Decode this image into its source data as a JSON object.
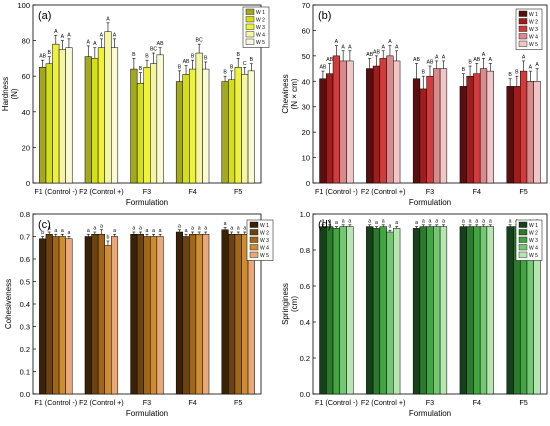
{
  "chart_data": [
    {
      "panel_label": "(a)",
      "type": "bar",
      "xlabel": "Formulation",
      "ylabel": "Hardness",
      "yunit": "(N)",
      "ylim": [
        0,
        100
      ],
      "yticks": [
        0,
        20,
        40,
        60,
        80,
        100
      ],
      "categories": [
        "F1 (Control -)",
        "F2 (Control +)",
        "F3",
        "F4",
        "F5"
      ],
      "series": [
        {
          "name": "W 1",
          "color": "#a3a81f",
          "values": [
            65,
            71,
            64,
            57,
            57
          ],
          "errors": [
            4,
            6,
            6,
            6,
            3
          ],
          "letters": [
            "AB",
            "A",
            "B",
            "B",
            "B"
          ]
        },
        {
          "name": "W 2",
          "color": "#d5de1c",
          "values": [
            67,
            70,
            56,
            61,
            58
          ],
          "errors": [
            4,
            6,
            6,
            5,
            5
          ],
          "letters": [
            "B",
            "A",
            "B",
            "AB",
            "B"
          ]
        },
        {
          "name": "W 3",
          "color": "#eef23a",
          "values": [
            78,
            76,
            65,
            64,
            65
          ],
          "errors": [
            5,
            5,
            4,
            5,
            5
          ],
          "letters": [
            "A",
            "A",
            "B",
            "B",
            "B"
          ]
        },
        {
          "name": "W 4",
          "color": "#f5f5a6",
          "values": [
            75,
            85,
            67,
            73,
            61
          ],
          "errors": [
            5,
            5,
            6,
            5,
            4
          ],
          "letters": [
            "A",
            "A",
            "BC",
            "BC",
            "C"
          ]
        },
        {
          "name": "W 5",
          "color": "#fafad5",
          "values": [
            76,
            76,
            72,
            64,
            63
          ],
          "errors": [
            5,
            5,
            4,
            4,
            4
          ],
          "letters": [
            "A",
            "A",
            "AB",
            "B",
            "B"
          ]
        }
      ]
    },
    {
      "panel_label": "(b)",
      "type": "bar",
      "xlabel": "Formulation",
      "ylabel": "Chewiness",
      "yunit": "(N × cm)",
      "ylim": [
        0,
        70
      ],
      "yticks": [
        0,
        10,
        20,
        30,
        40,
        50,
        60,
        70
      ],
      "categories": [
        "F1 (Control -)",
        "F2 (Control +)",
        "F3",
        "F4",
        "F5"
      ],
      "series": [
        {
          "name": "W 1",
          "color": "#5a0f0f",
          "values": [
            41,
            45,
            41,
            38,
            38
          ],
          "errors": [
            3,
            4,
            6,
            5,
            3
          ],
          "letters": [
            "AB",
            "AB",
            "AB",
            "B",
            "B"
          ]
        },
        {
          "name": "W 2",
          "color": "#a21c1c",
          "values": [
            43,
            46,
            37,
            42,
            38
          ],
          "errors": [
            4,
            4,
            5,
            4,
            4
          ],
          "letters": [
            "AB",
            "AB",
            "B",
            "B",
            "B"
          ]
        },
        {
          "name": "W 3",
          "color": "#d23b3b",
          "values": [
            50,
            49,
            42,
            43,
            44
          ],
          "errors": [
            4,
            3,
            4,
            4,
            4
          ],
          "letters": [
            "A",
            "A",
            "AB",
            "AB",
            "A"
          ]
        },
        {
          "name": "W 4",
          "color": "#d98b8b",
          "values": [
            48,
            50,
            45,
            45,
            40
          ],
          "errors": [
            4,
            4,
            3,
            4,
            4
          ],
          "letters": [
            "A",
            "A",
            "A",
            "A",
            "A"
          ]
        },
        {
          "name": "W 5",
          "color": "#f0c6c6",
          "values": [
            48,
            48,
            45,
            44,
            40
          ],
          "errors": [
            4,
            4,
            3,
            3,
            5
          ],
          "letters": [
            "A",
            "A",
            "A",
            "A",
            "A"
          ]
        }
      ]
    },
    {
      "panel_label": "(c)",
      "type": "bar",
      "xlabel": "Formulation",
      "ylabel": "Cohesiveness",
      "yunit": "",
      "ylim": [
        0,
        0.8
      ],
      "yticks": [
        0,
        0.1,
        0.2,
        0.3,
        0.4,
        0.5,
        0.6,
        0.7,
        0.8
      ],
      "categories": [
        "F1 (Control -)",
        "F2 (Control +)",
        "F3",
        "F4",
        "F5"
      ],
      "series": [
        {
          "name": "W 1",
          "color": "#3b2205",
          "values": [
            0.69,
            0.7,
            0.71,
            0.72,
            0.73
          ],
          "errors": [
            0.01,
            0.01,
            0.01,
            0.01,
            0.01
          ],
          "letters": [
            "b",
            "a",
            "a",
            "a",
            "a"
          ]
        },
        {
          "name": "W 2",
          "color": "#6b4310",
          "values": [
            0.71,
            0.71,
            0.71,
            0.7,
            0.71
          ],
          "errors": [
            0.01,
            0.01,
            0.01,
            0.01,
            0.01
          ],
          "letters": [
            "a",
            "a",
            "a",
            "a",
            "a"
          ]
        },
        {
          "name": "W 3",
          "color": "#a0661a",
          "values": [
            0.7,
            0.71,
            0.7,
            0.71,
            0.71
          ],
          "errors": [
            0.01,
            0.02,
            0.01,
            0.01,
            0.01
          ],
          "letters": [
            "a",
            "a",
            "a",
            "a",
            "a"
          ]
        },
        {
          "name": "W 4",
          "color": "#cf8d32",
          "values": [
            0.7,
            0.66,
            0.7,
            0.71,
            0.71
          ],
          "errors": [
            0.01,
            0.02,
            0.01,
            0.01,
            0.01
          ],
          "letters": [
            "a",
            "b",
            "a",
            "a",
            "a"
          ]
        },
        {
          "name": "W 5",
          "color": "#e8a878",
          "values": [
            0.69,
            0.7,
            0.7,
            0.71,
            0.7
          ],
          "errors": [
            0.01,
            0.01,
            0.01,
            0.01,
            0.01
          ],
          "letters": [
            "a",
            "a",
            "a",
            "a",
            "a"
          ]
        }
      ]
    },
    {
      "panel_label": "(d)",
      "type": "bar",
      "xlabel": "Formulation",
      "ylabel": "Springiness",
      "yunit": "(cm)",
      "ylim": [
        0,
        1.0
      ],
      "yticks": [
        0,
        0.2,
        0.4,
        0.6,
        0.8,
        1.0
      ],
      "categories": [
        "F1 (Control -)",
        "F2 (Control +)",
        "F3",
        "F4",
        "F5"
      ],
      "series": [
        {
          "name": "W 1",
          "color": "#17411a",
          "values": [
            0.93,
            0.93,
            0.92,
            0.93,
            0.93
          ],
          "errors": [
            0.01,
            0.01,
            0.01,
            0.01,
            0.01
          ],
          "letters": [
            "a",
            "a",
            "a",
            "a",
            "a"
          ]
        },
        {
          "name": "W 2",
          "color": "#2c7a2c",
          "values": [
            0.93,
            0.92,
            0.93,
            0.93,
            0.93
          ],
          "errors": [
            0.01,
            0.01,
            0.01,
            0.01,
            0.01
          ],
          "letters": [
            "a",
            "a",
            "a",
            "a",
            "a"
          ]
        },
        {
          "name": "W 3",
          "color": "#42a542",
          "values": [
            0.92,
            0.93,
            0.93,
            0.93,
            0.92
          ],
          "errors": [
            0.01,
            0.01,
            0.01,
            0.01,
            0.01
          ],
          "letters": [
            "a",
            "a",
            "a",
            "a",
            "a"
          ]
        },
        {
          "name": "W 4",
          "color": "#73c973",
          "values": [
            0.93,
            0.9,
            0.93,
            0.93,
            0.93
          ],
          "errors": [
            0.01,
            0.01,
            0.01,
            0.01,
            0.01
          ],
          "letters": [
            "a",
            "a",
            "a",
            "a",
            "a"
          ]
        },
        {
          "name": "W 5",
          "color": "#b8e6b0",
          "values": [
            0.93,
            0.92,
            0.93,
            0.93,
            0.93
          ],
          "errors": [
            0.01,
            0.01,
            0.01,
            0.01,
            0.01
          ],
          "letters": [
            "a",
            "a",
            "a",
            "a",
            "a"
          ]
        }
      ]
    }
  ]
}
